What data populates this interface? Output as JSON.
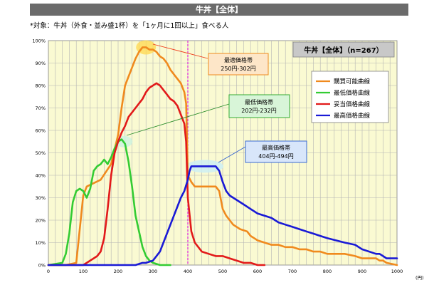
{
  "header": {
    "title": "牛丼【全体】",
    "subtitle": "*対象：牛丼（外食・並み盛1杯）を「1ヶ月に1回以上」食べる人"
  },
  "chart_data": {
    "type": "line",
    "xlim": [
      0,
      1000
    ],
    "ylim": [
      0,
      100
    ],
    "x_ticks": [
      "0",
      "100",
      "200",
      "300",
      "400",
      "500",
      "600",
      "700",
      "800",
      "900",
      "1000"
    ],
    "y_ticks": [
      "0%",
      "10%",
      "20%",
      "30%",
      "40%",
      "50%",
      "60%",
      "70%",
      "80%",
      "90%",
      "100%"
    ],
    "x_unit": "(円)",
    "grid": true,
    "reference_x": 400,
    "sample_box": "牛丼【全体】（n=267）",
    "legend_position": "right",
    "series": [
      {
        "name": "購買可能曲線",
        "color": "#f08a1e",
        "x": [
          0,
          50,
          80,
          100,
          110,
          150,
          180,
          200,
          210,
          220,
          230,
          240,
          250,
          260,
          270,
          280,
          290,
          300,
          310,
          320,
          330,
          340,
          350,
          360,
          380,
          390,
          395,
          400,
          410,
          420,
          440,
          460,
          480,
          490,
          500,
          510,
          520,
          530,
          550,
          570,
          580,
          590,
          600,
          620,
          640,
          660,
          680,
          700,
          720,
          740,
          760,
          780,
          800,
          850,
          880,
          900,
          940,
          950,
          960,
          970,
          1000
        ],
        "y": [
          0,
          0,
          1,
          31,
          35,
          38,
          45,
          58,
          70,
          80,
          84,
          88,
          92,
          95,
          97,
          97,
          96,
          96,
          95,
          93,
          92,
          90,
          87,
          85,
          81,
          77,
          72,
          40,
          37,
          35,
          35,
          35,
          35,
          33,
          25,
          22,
          20,
          18,
          16,
          15,
          13,
          12,
          11,
          10,
          9,
          9,
          8,
          8,
          7,
          7,
          6,
          6,
          5,
          5,
          4,
          3,
          3,
          2,
          2,
          1,
          0
        ]
      },
      {
        "name": "最低価格曲線",
        "color": "#33cc33",
        "x": [
          0,
          40,
          50,
          60,
          70,
          80,
          90,
          100,
          110,
          120,
          130,
          140,
          150,
          160,
          170,
          180,
          190,
          200,
          210,
          220,
          230,
          240,
          250,
          260,
          270,
          280,
          290,
          300,
          320,
          350
        ],
        "y": [
          0,
          1,
          5,
          14,
          28,
          33,
          34,
          33,
          30,
          34,
          42,
          44,
          45,
          47,
          45,
          48,
          52,
          55,
          56,
          54,
          46,
          35,
          22,
          15,
          8,
          4,
          2,
          1,
          0,
          0
        ]
      },
      {
        "name": "妥当価格曲線",
        "color": "#e21a1a",
        "x": [
          0,
          100,
          110,
          120,
          130,
          140,
          150,
          160,
          170,
          180,
          190,
          200,
          210,
          220,
          230,
          240,
          250,
          260,
          270,
          280,
          290,
          300,
          310,
          320,
          330,
          340,
          350,
          360,
          370,
          380,
          390,
          395,
          400,
          410,
          420,
          440,
          460,
          480,
          500,
          520,
          540,
          560,
          580,
          600,
          620
        ],
        "y": [
          0,
          0,
          1,
          2,
          3,
          4,
          6,
          12,
          25,
          40,
          50,
          55,
          59,
          62,
          66,
          68,
          70,
          72,
          74,
          77,
          79,
          80,
          81,
          80,
          78,
          76,
          74,
          73,
          71,
          67,
          63,
          55,
          30,
          15,
          10,
          6,
          5,
          4,
          4,
          3,
          2,
          1,
          1,
          0,
          0
        ]
      },
      {
        "name": "最高価格曲線",
        "color": "#1a1ad6",
        "x": [
          0,
          150,
          200,
          250,
          270,
          280,
          300,
          310,
          320,
          330,
          340,
          350,
          360,
          370,
          380,
          390,
          400,
          405,
          410,
          420,
          440,
          460,
          480,
          490,
          500,
          510,
          520,
          530,
          560,
          580,
          600,
          620,
          640,
          660,
          680,
          700,
          720,
          740,
          760,
          780,
          800,
          850,
          880,
          900,
          940,
          950,
          960,
          970,
          1000
        ],
        "y": [
          0,
          0,
          0,
          0,
          1,
          1,
          2,
          4,
          6,
          10,
          14,
          18,
          22,
          26,
          30,
          33,
          38,
          42,
          44,
          44,
          44,
          44,
          44,
          42,
          37,
          33,
          31,
          30,
          27,
          25,
          23,
          22,
          21,
          19,
          18,
          17,
          16,
          15,
          14,
          13,
          12,
          10,
          9,
          7,
          5,
          5,
          4,
          3,
          3
        ]
      }
    ],
    "annotations": [
      {
        "label": "最適価格帯",
        "range": "250円-302円"
      },
      {
        "label": "最低価格帯",
        "range": "202円-232円"
      },
      {
        "label": "最高価格帯",
        "range": "404円-494円"
      }
    ]
  }
}
